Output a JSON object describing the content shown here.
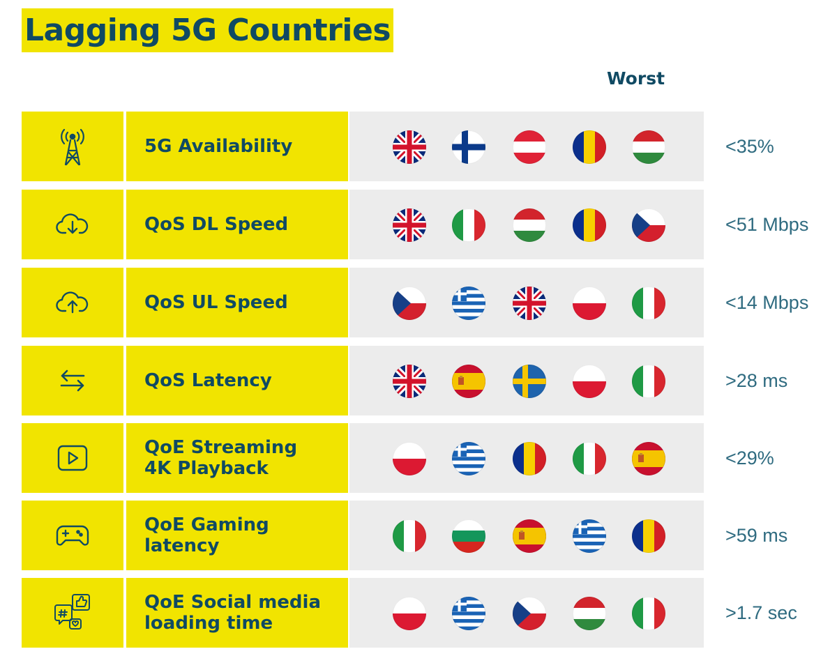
{
  "title": "Lagging 5G Countries",
  "column_header": "Worst",
  "colors": {
    "accent_yellow": "#f1e400",
    "text_navy": "#104a63",
    "value_blue": "#2f6b80",
    "flag_panel": "#ececec"
  },
  "rows": [
    {
      "icon": "cell-tower-icon",
      "label": "5G Availability",
      "flags": [
        "uk",
        "finland",
        "austria",
        "romania",
        "hungary"
      ],
      "value": "<35%"
    },
    {
      "icon": "cloud-download-icon",
      "label": "QoS DL Speed",
      "flags": [
        "uk",
        "italy",
        "hungary",
        "romania",
        "czech"
      ],
      "value": "<51 Mbps"
    },
    {
      "icon": "cloud-upload-icon",
      "label": "QoS UL Speed",
      "flags": [
        "czech",
        "greece",
        "uk",
        "poland",
        "italy"
      ],
      "value": "<14 Mbps"
    },
    {
      "icon": "swap-arrows-icon",
      "label": "QoS Latency",
      "flags": [
        "uk",
        "spain",
        "sweden",
        "poland",
        "italy"
      ],
      "value": ">28 ms"
    },
    {
      "icon": "play-video-icon",
      "label": "QoE Streaming\n4K Playback",
      "flags": [
        "poland",
        "greece",
        "romania",
        "italy",
        "spain"
      ],
      "value": "<29%"
    },
    {
      "icon": "gamepad-icon",
      "label": "QoE Gaming\nlatency",
      "flags": [
        "italy",
        "bulgaria",
        "spain",
        "greece",
        "romania"
      ],
      "value": ">59 ms"
    },
    {
      "icon": "social-media-icon",
      "label": "QoE Social media\nloading time",
      "flags": [
        "poland",
        "greece",
        "czech",
        "hungary",
        "italy"
      ],
      "value": ">1.7 sec"
    }
  ]
}
